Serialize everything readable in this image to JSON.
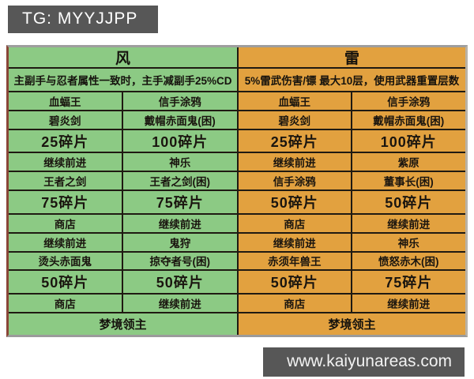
{
  "page": {
    "tg_badge": "TG: MYYJJPP",
    "site_badge": "www.kaiyunareas.com"
  },
  "tables": [
    {
      "element": "风",
      "subtitle": "主副手与忍者属性一致时，主手减副手25%CD",
      "theme_color": "#8cca84",
      "border_color": "#1f1a12",
      "rows": [
        [
          "血蝠王",
          "信手涂鸦"
        ],
        [
          "碧炎剑",
          "戴帽赤面鬼(困)"
        ],
        [
          "25碎片",
          "100碎片"
        ],
        [
          "继续前进",
          "神乐"
        ],
        [
          "王者之剑",
          "王者之剑(困)"
        ],
        [
          "75碎片",
          "75碎片"
        ],
        [
          "商店",
          "继续前进"
        ],
        [
          "继续前进",
          "鬼狩"
        ],
        [
          "烫头赤面鬼",
          "掠夺者号(困)"
        ],
        [
          "50碎片",
          "50碎片"
        ],
        [
          "商店",
          "继续前进"
        ]
      ],
      "footer": "梦境领主"
    },
    {
      "element": "雷",
      "subtitle": "5%雷武伤害/镖 最大10层，使用武器重置层数",
      "theme_color": "#e2a13f",
      "border_color": "#1f1a12",
      "rows": [
        [
          "血蝠王",
          "信手涂鸦"
        ],
        [
          "碧炎剑",
          "戴帽赤面鬼(困)"
        ],
        [
          "25碎片",
          "100碎片"
        ],
        [
          "继续前进",
          "紫原"
        ],
        [
          "信手涂鸦",
          "董事长(困)"
        ],
        [
          "50碎片",
          "50碎片"
        ],
        [
          "商店",
          "继续前进"
        ],
        [
          "继续前进",
          "神乐"
        ],
        [
          "赤须年兽王",
          "愤怒赤木(困)"
        ],
        [
          "50碎片",
          "75碎片"
        ],
        [
          "商店",
          "继续前进"
        ]
      ],
      "footer": "梦境领主"
    }
  ]
}
